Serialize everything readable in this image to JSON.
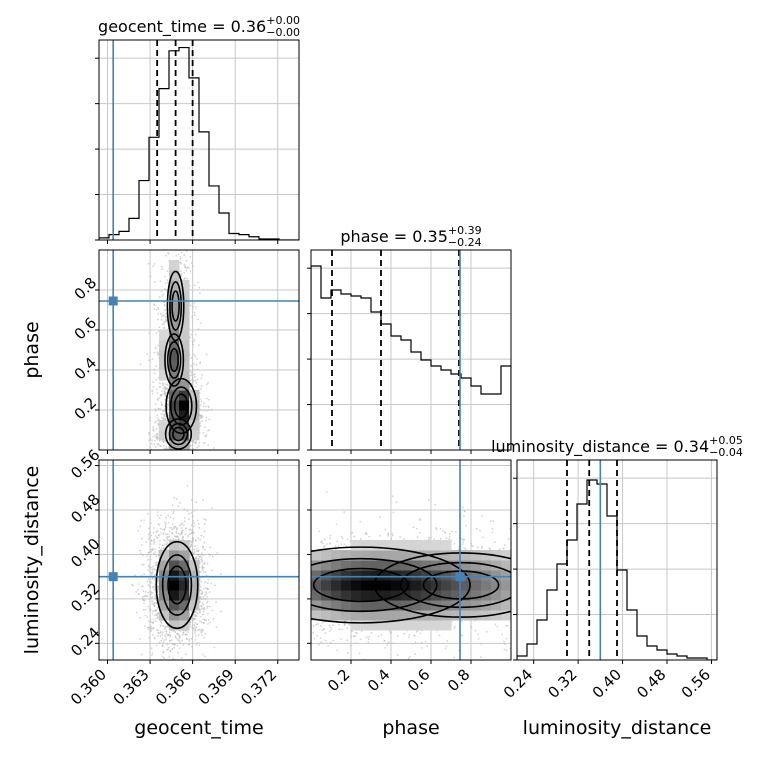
{
  "chart_data": {
    "type": "corner",
    "parameters": [
      {
        "name": "geocent_time",
        "xlabel": "geocent_time",
        "range": [
          0.3594,
          0.3735
        ],
        "ticks": [
          0.36,
          0.363,
          0.366,
          0.369,
          0.372
        ],
        "tick_labels": [
          "0.360",
          "0.363",
          "0.366",
          "0.369",
          "0.372"
        ],
        "injection": 0.3604,
        "title_main": "geocent_time = 0.36",
        "title_sup": "+0.00",
        "title_sub": "−0.00",
        "quantiles": [
          0.3635,
          0.3648,
          0.366
        ],
        "histogram": {
          "edges_start": 0.3594,
          "bin_width": 0.000705,
          "counts": [
            2,
            5,
            8,
            20,
            55,
            95,
            140,
            175,
            178,
            150,
            100,
            50,
            25,
            6,
            5,
            3,
            1,
            1,
            0,
            0
          ]
        },
        "hist_ylim": [
          0,
          185
        ]
      },
      {
        "name": "phase",
        "xlabel": "phase",
        "ylabel": "phase",
        "range": [
          0.0,
          1.0
        ],
        "ticks": [
          0.2,
          0.4,
          0.6,
          0.8
        ],
        "tick_labels": [
          "0.2",
          "0.4",
          "0.6",
          "0.8"
        ],
        "injection": 0.745,
        "title_main": "phase = 0.35",
        "title_sup": "+0.39",
        "title_sub": "−0.24",
        "quantiles": [
          0.105,
          0.35,
          0.74
        ],
        "histogram": {
          "edges_start": 0.0,
          "bin_width": 0.05,
          "counts": [
            92,
            76,
            80,
            78,
            77,
            76,
            69,
            63,
            57,
            55,
            49,
            45,
            42,
            40,
            38,
            36,
            32,
            28,
            28,
            42
          ]
        },
        "hist_ylim": [
          0,
          100
        ]
      },
      {
        "name": "luminosity_distance",
        "xlabel": "luminosity_distance",
        "ylabel": "luminosity_distance",
        "range": [
          0.21,
          0.57
        ],
        "ticks": [
          0.24,
          0.32,
          0.4,
          0.48,
          0.56
        ],
        "tick_labels": [
          "0.24",
          "0.32",
          "0.40",
          "0.48",
          "0.56"
        ],
        "injection": 0.36,
        "title_main": "luminosity_distance = 0.34",
        "title_sup": "+0.05",
        "title_sub": "−0.04",
        "quantiles": [
          0.3,
          0.34,
          0.39
        ],
        "histogram": {
          "edges_start": 0.21,
          "bin_width": 0.018,
          "counts": [
            2,
            8,
            20,
            35,
            48,
            60,
            78,
            90,
            88,
            72,
            45,
            25,
            12,
            7,
            5,
            3,
            2,
            1,
            1,
            0
          ]
        },
        "hist_ylim": [
          0,
          100
        ]
      }
    ],
    "injection_color": "#4682b4",
    "quantile_line_style": "dashed",
    "grid": true,
    "density_panels": [
      {
        "x_param": "geocent_time",
        "y_param": "phase",
        "blobs": [
          {
            "cx": 0.3652,
            "cy": 0.22,
            "sx": 0.00055,
            "sy": 0.07,
            "weight": 1.0
          },
          {
            "cx": 0.3647,
            "cy": 0.45,
            "sx": 0.00045,
            "sy": 0.09,
            "weight": 0.55
          },
          {
            "cx": 0.3648,
            "cy": 0.72,
            "sx": 0.0005,
            "sy": 0.15,
            "weight": 0.35
          },
          {
            "cx": 0.365,
            "cy": 0.08,
            "sx": 0.0006,
            "sy": 0.05,
            "weight": 0.6
          }
        ]
      },
      {
        "x_param": "geocent_time",
        "y_param": "luminosity_distance",
        "blobs": [
          {
            "cx": 0.3649,
            "cy": 0.345,
            "sx": 0.00075,
            "sy": 0.04,
            "weight": 1.0
          }
        ]
      },
      {
        "x_param": "phase",
        "y_param": "luminosity_distance",
        "blobs": [
          {
            "cx": 0.25,
            "cy": 0.345,
            "sx": 0.28,
            "sy": 0.035,
            "weight": 1.0
          },
          {
            "cx": 0.75,
            "cy": 0.345,
            "sx": 0.3,
            "sy": 0.04,
            "weight": 0.55
          }
        ]
      }
    ]
  }
}
